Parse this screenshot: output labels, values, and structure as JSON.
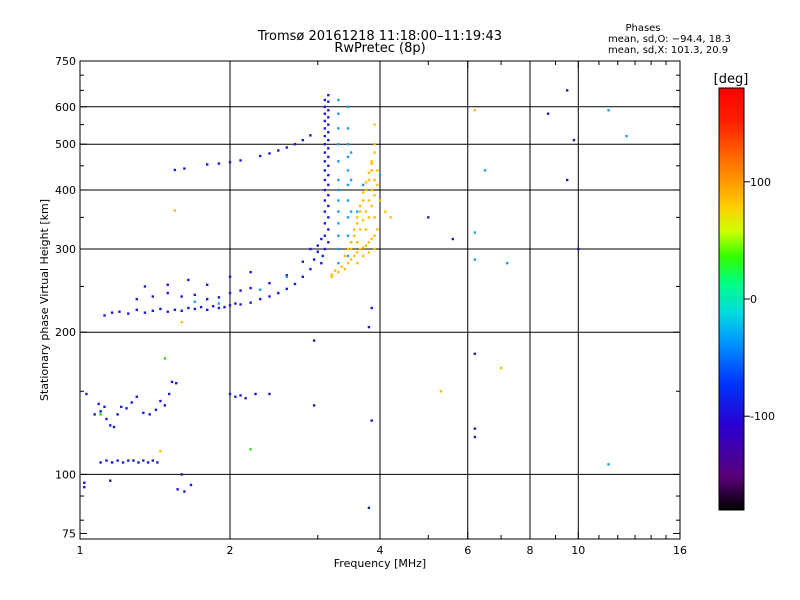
{
  "chart_data": {
    "type": "scatter",
    "title": "Tromsø 20161218 11:18:00–11:19:43",
    "subtitle": "RwPretec (8p)",
    "xlabel": "Frequency [MHz]",
    "ylabel": "Stationary phase Virtual Height [km]",
    "x_scale": "log",
    "y_scale": "log",
    "xlim": [
      1,
      16
    ],
    "ylim": [
      73,
      750
    ],
    "x_ticks": [
      1,
      2,
      4,
      6,
      8,
      10,
      16
    ],
    "y_ticks": [
      75,
      100,
      200,
      300,
      400,
      500,
      600,
      750
    ],
    "x_grid": [
      2,
      4,
      6,
      8,
      10
    ],
    "y_grid": [
      100,
      200,
      300,
      400,
      500,
      600
    ],
    "phase_info": {
      "title": "Phases",
      "line_o": "mean, sd,O: −94.4, 18.3",
      "line_x": "mean, sd,X: 101.3, 20.9"
    },
    "colorbar": {
      "label": "[deg]",
      "min": -180,
      "max": 180,
      "ticks": [
        100,
        0,
        -100
      ],
      "colors": [
        "#000000",
        "#5a007a",
        "#2b00d0",
        "#0033ff",
        "#0099ff",
        "#00dddd",
        "#00ff80",
        "#33ff00",
        "#ccff00",
        "#ffcc00",
        "#ff7700",
        "#ff2000",
        "#ff0000"
      ]
    },
    "series": [
      {
        "points": [
          [
            1.03,
            148
          ],
          [
            1.07,
            134
          ],
          [
            1.09,
            141
          ],
          [
            1.1,
            136
          ],
          [
            1.12,
            139
          ],
          [
            1.13,
            131
          ],
          [
            1.15,
            127
          ],
          [
            1.17,
            126
          ],
          [
            1.19,
            134
          ],
          [
            1.21,
            139
          ],
          [
            1.24,
            138
          ],
          [
            1.27,
            142
          ],
          [
            1.3,
            146
          ],
          [
            1.34,
            135
          ],
          [
            1.38,
            134
          ],
          [
            1.42,
            137
          ],
          [
            1.45,
            143
          ],
          [
            1.48,
            140
          ],
          [
            1.51,
            148
          ],
          [
            1.53,
            157
          ],
          [
            1.56,
            156
          ],
          [
            2.0,
            148
          ],
          [
            2.05,
            146
          ],
          [
            2.1,
            147
          ],
          [
            2.15,
            145
          ],
          [
            2.25,
            148
          ],
          [
            2.4,
            148
          ],
          [
            1.1,
            106
          ],
          [
            1.13,
            107
          ],
          [
            1.16,
            106
          ],
          [
            1.19,
            107
          ],
          [
            1.22,
            106
          ],
          [
            1.25,
            107
          ],
          [
            1.28,
            107
          ],
          [
            1.31,
            106
          ],
          [
            1.34,
            107
          ],
          [
            1.37,
            106
          ],
          [
            1.4,
            107
          ],
          [
            1.43,
            106
          ],
          [
            1.02,
            96
          ],
          [
            1.02,
            94
          ],
          [
            1.57,
            93
          ],
          [
            1.62,
            92
          ],
          [
            1.67,
            95
          ],
          [
            1.12,
            217
          ],
          [
            1.16,
            220
          ],
          [
            1.2,
            221
          ],
          [
            1.25,
            219
          ],
          [
            1.3,
            223
          ],
          [
            1.35,
            220
          ],
          [
            1.4,
            222
          ],
          [
            1.45,
            224
          ],
          [
            1.5,
            221
          ],
          [
            1.55,
            223
          ],
          [
            1.6,
            222
          ],
          [
            1.65,
            225
          ],
          [
            1.7,
            224
          ],
          [
            1.75,
            226
          ],
          [
            1.8,
            223
          ],
          [
            1.85,
            227
          ],
          [
            1.9,
            225
          ],
          [
            1.95,
            226
          ],
          [
            2.0,
            228
          ],
          [
            2.05,
            230
          ],
          [
            2.1,
            229
          ],
          [
            2.2,
            231
          ],
          [
            2.3,
            235
          ],
          [
            2.4,
            238
          ],
          [
            2.5,
            242
          ],
          [
            2.6,
            247
          ],
          [
            2.7,
            253
          ],
          [
            2.8,
            262
          ],
          [
            2.9,
            272
          ],
          [
            2.95,
            285
          ],
          [
            3.0,
            296
          ],
          [
            1.3,
            235
          ],
          [
            1.4,
            238
          ],
          [
            1.5,
            242
          ],
          [
            1.6,
            238
          ],
          [
            1.7,
            240
          ],
          [
            1.8,
            235
          ],
          [
            1.9,
            237
          ],
          [
            2.0,
            242
          ],
          [
            2.1,
            245
          ],
          [
            2.2,
            248
          ],
          [
            2.4,
            254
          ],
          [
            2.6,
            264
          ],
          [
            2.8,
            282
          ],
          [
            2.9,
            300
          ],
          [
            1.35,
            250
          ],
          [
            1.5,
            252
          ],
          [
            1.65,
            258
          ],
          [
            1.8,
            252
          ],
          [
            2.0,
            262
          ],
          [
            2.2,
            268
          ],
          [
            1.55,
            441
          ],
          [
            1.62,
            444
          ],
          [
            1.8,
            453
          ],
          [
            1.9,
            455
          ],
          [
            2.0,
            458
          ],
          [
            2.1,
            462
          ],
          [
            2.3,
            472
          ],
          [
            2.4,
            478
          ],
          [
            2.5,
            485
          ],
          [
            2.6,
            492
          ],
          [
            2.7,
            500
          ],
          [
            2.8,
            510
          ],
          [
            2.9,
            522
          ],
          [
            3.1,
            300
          ],
          [
            3.1,
            320
          ],
          [
            3.1,
            340
          ],
          [
            3.1,
            360
          ],
          [
            3.1,
            380
          ],
          [
            3.1,
            400
          ],
          [
            3.1,
            420
          ],
          [
            3.1,
            440
          ],
          [
            3.1,
            460
          ],
          [
            3.1,
            480
          ],
          [
            3.1,
            500
          ],
          [
            3.1,
            520
          ],
          [
            3.1,
            540
          ],
          [
            3.1,
            560
          ],
          [
            3.1,
            580
          ],
          [
            3.1,
            600
          ],
          [
            3.1,
            620
          ],
          [
            3.15,
            310
          ],
          [
            3.15,
            330
          ],
          [
            3.15,
            350
          ],
          [
            3.15,
            370
          ],
          [
            3.15,
            390
          ],
          [
            3.15,
            410
          ],
          [
            3.15,
            430
          ],
          [
            3.15,
            450
          ],
          [
            3.15,
            470
          ],
          [
            3.15,
            490
          ],
          [
            3.15,
            510
          ],
          [
            3.15,
            530
          ],
          [
            3.15,
            550
          ],
          [
            3.15,
            570
          ],
          [
            3.15,
            590
          ],
          [
            3.15,
            615
          ],
          [
            3.15,
            635
          ],
          [
            3.05,
            280
          ],
          [
            3.07,
            290
          ],
          [
            3.0,
            305
          ],
          [
            3.05,
            315
          ],
          [
            3.85,
            130
          ],
          [
            3.8,
            205
          ],
          [
            3.85,
            225
          ],
          [
            3.8,
            85
          ]
        ],
        "color": "#1a1adc"
      },
      {
        "points": [
          [
            3.3,
            280
          ],
          [
            3.3,
            300
          ],
          [
            3.3,
            320
          ],
          [
            3.3,
            340
          ],
          [
            3.3,
            360
          ],
          [
            3.3,
            380
          ],
          [
            3.3,
            400
          ],
          [
            3.3,
            420
          ],
          [
            3.3,
            460
          ],
          [
            3.3,
            500
          ],
          [
            3.3,
            540
          ],
          [
            3.3,
            580
          ],
          [
            3.3,
            620
          ],
          [
            3.45,
            290
          ],
          [
            3.45,
            320
          ],
          [
            3.45,
            350
          ],
          [
            3.45,
            380
          ],
          [
            3.45,
            410
          ],
          [
            3.45,
            440
          ],
          [
            3.45,
            470
          ],
          [
            3.45,
            500
          ],
          [
            3.45,
            540
          ],
          [
            3.45,
            600
          ],
          [
            3.5,
            310
          ],
          [
            3.5,
            360
          ],
          [
            3.5,
            420
          ],
          [
            3.5,
            480
          ],
          [
            2.6,
            262
          ],
          [
            1.7,
            232
          ],
          [
            1.9,
            230
          ],
          [
            2.3,
            246
          ],
          [
            6.5,
            440
          ],
          [
            7.2,
            280
          ],
          [
            6.2,
            325
          ],
          [
            6.2,
            285
          ],
          [
            11.5,
            590
          ],
          [
            12.5,
            520
          ],
          [
            11.5,
            105
          ],
          [
            4.0,
            430
          ],
          [
            3.7,
            410
          ],
          [
            3.6,
            360
          ]
        ],
        "color": "#1aa0f0"
      },
      {
        "points": [
          [
            3.2,
            262
          ],
          [
            3.2,
            265
          ],
          [
            3.25,
            270
          ],
          [
            3.3,
            268
          ],
          [
            3.35,
            275
          ],
          [
            3.4,
            272
          ],
          [
            3.45,
            280
          ],
          [
            3.5,
            285
          ],
          [
            3.55,
            290
          ],
          [
            3.6,
            295
          ],
          [
            3.65,
            300
          ],
          [
            3.7,
            302
          ],
          [
            3.75,
            305
          ],
          [
            3.8,
            310
          ],
          [
            3.85,
            315
          ],
          [
            3.9,
            320
          ],
          [
            3.5,
            300
          ],
          [
            3.55,
            320
          ],
          [
            3.6,
            340
          ],
          [
            3.65,
            360
          ],
          [
            3.7,
            380
          ],
          [
            3.75,
            400
          ],
          [
            3.8,
            420
          ],
          [
            3.85,
            440
          ],
          [
            3.85,
            460
          ],
          [
            3.9,
            480
          ],
          [
            3.9,
            500
          ],
          [
            3.9,
            350
          ],
          [
            3.95,
            330
          ],
          [
            3.6,
            280
          ],
          [
            3.7,
            290
          ],
          [
            3.8,
            295
          ],
          [
            3.9,
            300
          ],
          [
            3.75,
            330
          ],
          [
            3.8,
            350
          ],
          [
            3.85,
            370
          ],
          [
            3.9,
            390
          ],
          [
            3.6,
            310
          ],
          [
            3.65,
            330
          ],
          [
            3.7,
            345
          ],
          [
            3.75,
            360
          ],
          [
            3.8,
            380
          ],
          [
            3.85,
            400
          ],
          [
            3.9,
            420
          ],
          [
            3.95,
            440
          ],
          [
            3.4,
            290
          ],
          [
            3.45,
            300
          ],
          [
            3.5,
            310
          ],
          [
            3.55,
            330
          ],
          [
            3.6,
            350
          ],
          [
            3.65,
            370
          ],
          [
            3.7,
            395
          ],
          [
            3.75,
            415
          ],
          [
            3.8,
            435
          ],
          [
            3.85,
            455
          ],
          [
            3.9,
            550
          ],
          [
            3.95,
            410
          ],
          [
            4.0,
            380
          ],
          [
            4.1,
            360
          ],
          [
            4.2,
            350
          ],
          [
            6.2,
            590
          ],
          [
            5.3,
            150
          ],
          [
            7.0,
            168
          ],
          [
            1.6,
            210
          ],
          [
            1.45,
            112
          ],
          [
            1.55,
            362
          ]
        ],
        "color": "#ffbf00"
      },
      {
        "points": [
          [
            1.48,
            176
          ],
          [
            2.2,
            113
          ],
          [
            1.1,
            134
          ]
        ],
        "color": "#22dd22"
      },
      {
        "points": [
          [
            9.5,
            650
          ],
          [
            8.7,
            580
          ],
          [
            9.8,
            510
          ],
          [
            9.5,
            420
          ],
          [
            10.0,
            300
          ],
          [
            6.2,
            180
          ],
          [
            6.2,
            125
          ],
          [
            6.2,
            120
          ],
          [
            5.6,
            315
          ],
          [
            5.0,
            350
          ],
          [
            2.95,
            140
          ],
          [
            2.95,
            192
          ],
          [
            1.15,
            97
          ],
          [
            1.6,
            100
          ]
        ],
        "color": "#3a10a0"
      }
    ]
  }
}
